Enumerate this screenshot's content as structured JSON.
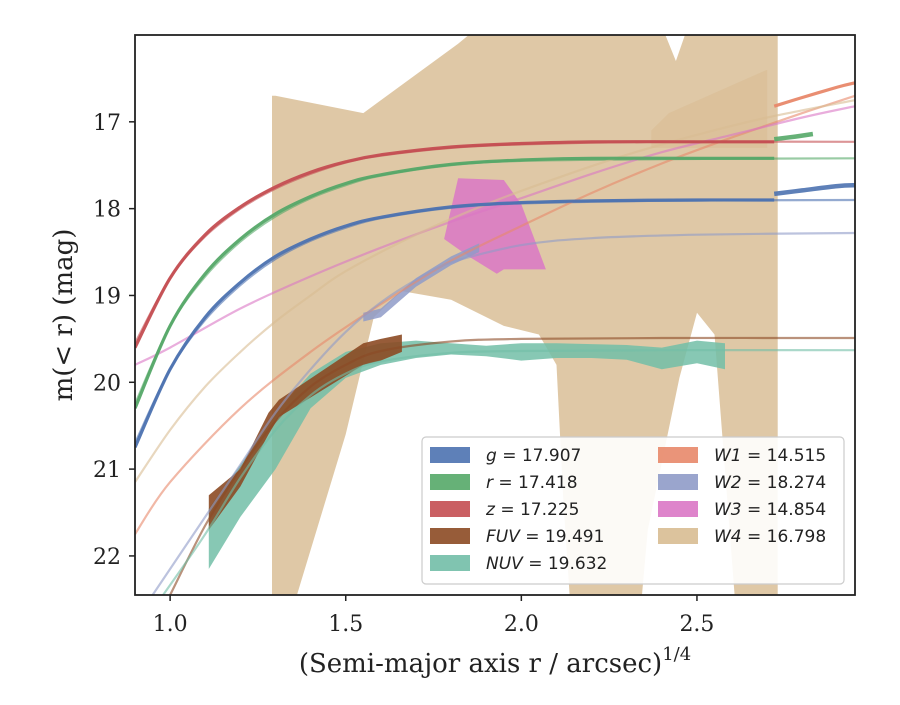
{
  "chart_data": {
    "type": "line",
    "xlabel": "(Semi-major axis r / arcsec)",
    "xlabel_exponent": "1/4",
    "ylabel": "m(< r) (mag)",
    "xlim": [
      0.9,
      2.95
    ],
    "ylim": [
      22.45,
      16.0
    ],
    "y_inverted": true,
    "grid": false,
    "legend_position": "lower-right",
    "x_ticks": [
      1.0,
      1.5,
      2.0,
      2.5
    ],
    "x_tick_labels": [
      "1.0",
      "1.5",
      "2.0",
      "2.5"
    ],
    "y_ticks": [
      17,
      18,
      19,
      20,
      21,
      22
    ],
    "y_tick_labels": [
      "17",
      "18",
      "19",
      "20",
      "21",
      "22"
    ],
    "legend": [
      {
        "band": "g",
        "text": "= 17.907",
        "color": "#4c72b0"
      },
      {
        "band": "r",
        "text": "= 17.418",
        "color": "#55a868"
      },
      {
        "band": "z",
        "text": "= 17.225",
        "color": "#c44e52"
      },
      {
        "band": "FUV",
        "text": "= 19.491",
        "color": "#8c4a24"
      },
      {
        "band": "NUV",
        "text": "= 19.632",
        "color": "#72bea7"
      },
      {
        "band": "W1",
        "text": "= 14.515",
        "color": "#e8886a"
      },
      {
        "band": "W2",
        "text": "= 18.274",
        "color": "#8f9bc8"
      },
      {
        "band": "W3",
        "text": "= 14.854",
        "color": "#da77c5"
      },
      {
        "band": "W4",
        "text": "= 16.798",
        "color": "#d8bc92"
      }
    ],
    "series": [
      {
        "band": "g",
        "color": "#4c72b0",
        "data_x": [
          0.9,
          1.0,
          1.1,
          1.2,
          1.3,
          1.4,
          1.5,
          1.6,
          1.8,
          2.0,
          2.2,
          2.5,
          2.72
        ],
        "data_y": [
          20.75,
          19.85,
          19.25,
          18.85,
          18.55,
          18.35,
          18.2,
          18.1,
          17.98,
          17.93,
          17.91,
          17.9,
          17.9
        ],
        "ext_x": [
          2.72,
          2.8,
          2.9,
          2.95
        ],
        "ext_y": [
          17.83,
          17.79,
          17.74,
          17.73
        ],
        "model_x": [
          0.9,
          1.0,
          1.1,
          1.2,
          1.3,
          1.4,
          1.5,
          1.6,
          1.8,
          2.0,
          2.4,
          2.95
        ],
        "model_y": [
          20.7,
          19.85,
          19.28,
          18.88,
          18.58,
          18.37,
          18.22,
          18.11,
          17.99,
          17.94,
          17.91,
          17.9
        ]
      },
      {
        "band": "r",
        "color": "#55a868",
        "data_x": [
          0.9,
          1.0,
          1.1,
          1.2,
          1.3,
          1.4,
          1.5,
          1.6,
          1.8,
          2.0,
          2.2,
          2.5,
          2.72
        ],
        "data_y": [
          20.3,
          19.35,
          18.75,
          18.35,
          18.06,
          17.86,
          17.71,
          17.61,
          17.49,
          17.44,
          17.42,
          17.42,
          17.42
        ],
        "ext_x": [
          2.72,
          2.78,
          2.83
        ],
        "ext_y": [
          17.2,
          17.17,
          17.14
        ],
        "model_x": [
          0.9,
          1.0,
          1.1,
          1.2,
          1.3,
          1.4,
          1.5,
          1.6,
          1.8,
          2.0,
          2.4,
          2.95
        ],
        "model_y": [
          20.25,
          19.35,
          18.78,
          18.38,
          18.09,
          17.88,
          17.73,
          17.62,
          17.5,
          17.45,
          17.43,
          17.42
        ]
      },
      {
        "band": "z",
        "color": "#c44e52",
        "data_x": [
          0.9,
          1.0,
          1.1,
          1.2,
          1.3,
          1.4,
          1.5,
          1.6,
          1.8,
          2.0,
          2.2,
          2.5,
          2.72
        ],
        "data_y": [
          19.6,
          18.8,
          18.3,
          17.98,
          17.75,
          17.58,
          17.46,
          17.38,
          17.29,
          17.25,
          17.23,
          17.23,
          17.23
        ],
        "ext_x": [],
        "ext_y": [],
        "model_x": [
          0.9,
          1.0,
          1.1,
          1.2,
          1.3,
          1.4,
          1.5,
          1.6,
          1.8,
          2.0,
          2.4,
          2.95
        ],
        "model_y": [
          19.55,
          18.8,
          18.32,
          18.0,
          17.77,
          17.6,
          17.47,
          17.39,
          17.3,
          17.26,
          17.23,
          17.23
        ]
      },
      {
        "band": "W1",
        "color": "#e8886a",
        "data_x": [
          2.72,
          2.8,
          2.9,
          2.95
        ],
        "data_y": [
          16.82,
          16.72,
          16.6,
          16.55
        ],
        "ext_x": [],
        "ext_y": [],
        "model_x": [
          0.9,
          1.0,
          1.2,
          1.4,
          1.6,
          1.8,
          2.0,
          2.2,
          2.4,
          2.6,
          2.8,
          2.95
        ],
        "model_y": [
          21.75,
          21.15,
          20.3,
          19.65,
          19.1,
          18.6,
          18.2,
          17.82,
          17.48,
          17.18,
          16.9,
          16.7
        ]
      },
      {
        "band": "W2",
        "color": "#8f9bc8",
        "data_x": [],
        "data_y": [],
        "ext_x": [],
        "ext_y": [],
        "model_x": [
          0.95,
          1.1,
          1.2,
          1.3,
          1.4,
          1.5,
          1.6,
          1.7,
          1.8,
          2.0,
          2.2,
          2.5,
          2.95
        ],
        "model_y": [
          22.45,
          21.55,
          20.95,
          20.35,
          19.85,
          19.42,
          19.08,
          18.82,
          18.62,
          18.42,
          18.34,
          18.3,
          18.28
        ]
      },
      {
        "band": "W3",
        "color": "#da77c5",
        "data_x": [],
        "data_y": [],
        "ext_x": [],
        "ext_y": [],
        "model_x": [
          0.9,
          1.0,
          1.2,
          1.4,
          1.6,
          1.8,
          2.0,
          2.2,
          2.4,
          2.6,
          2.8,
          2.95
        ],
        "model_y": [
          19.8,
          19.6,
          19.15,
          18.78,
          18.45,
          18.15,
          17.88,
          17.6,
          17.35,
          17.15,
          16.95,
          16.82
        ]
      },
      {
        "band": "W4",
        "color": "#d8bc92",
        "data_x": [],
        "data_y": [],
        "ext_x": [],
        "ext_y": [],
        "model_x": [
          0.9,
          1.0,
          1.1,
          1.2,
          1.3,
          1.4,
          1.5,
          1.7,
          1.9,
          2.1,
          2.3,
          2.5,
          2.7,
          2.95
        ],
        "model_y": [
          21.15,
          20.55,
          20.05,
          19.65,
          19.3,
          19.0,
          18.72,
          18.3,
          17.95,
          17.65,
          17.38,
          17.15,
          16.95,
          16.75
        ]
      },
      {
        "band": "FUV",
        "color": "#8c4a24",
        "data_x": [],
        "data_y": [],
        "ext_x": [],
        "ext_y": [],
        "model_x": [
          1.0,
          1.1,
          1.2,
          1.3,
          1.4,
          1.5,
          1.6,
          1.8,
          2.0,
          2.4,
          2.95
        ],
        "model_y": [
          22.45,
          21.65,
          21.0,
          20.45,
          20.05,
          19.8,
          19.64,
          19.53,
          19.5,
          19.49,
          19.49
        ]
      },
      {
        "band": "NUV",
        "color": "#72bea7",
        "data_x": [],
        "data_y": [],
        "ext_x": [],
        "ext_y": [],
        "model_x": [
          0.98,
          1.1,
          1.2,
          1.3,
          1.4,
          1.5,
          1.6,
          1.8,
          2.0,
          2.4,
          2.95
        ],
        "model_y": [
          22.45,
          21.75,
          21.1,
          20.55,
          20.15,
          19.9,
          19.76,
          19.66,
          19.64,
          19.63,
          19.63
        ]
      }
    ],
    "bands": [
      {
        "band": "W4",
        "color": "#d8bc92",
        "opacity": 0.82,
        "upper_x": [
          1.29,
          1.3,
          1.55,
          1.82,
          2.03,
          2.1,
          2.15,
          2.3,
          2.37,
          2.44,
          2.5,
          2.6,
          2.67,
          2.73
        ],
        "upper_y": [
          16.7,
          16.7,
          16.9,
          16.1,
          15.4,
          15.4,
          15.6,
          15.4,
          15.6,
          16.3,
          15.6,
          15.4,
          15.4,
          15.4
        ],
        "lower_x": [
          1.29,
          1.3,
          1.35,
          1.5,
          1.58,
          1.66,
          1.8,
          1.95,
          2.05,
          2.1,
          2.12,
          2.14,
          2.2,
          2.34,
          2.36,
          2.45,
          2.5,
          2.55,
          2.61,
          2.63,
          2.73
        ],
        "lower_y": [
          22.6,
          22.6,
          22.6,
          20.6,
          19.25,
          18.95,
          19.05,
          19.35,
          19.45,
          19.8,
          21.4,
          22.6,
          22.6,
          22.6,
          21.7,
          19.95,
          19.2,
          19.45,
          22.6,
          22.6,
          22.6
        ]
      },
      {
        "band": "W4",
        "color": "#d8bc92",
        "opacity": 0.55,
        "upper_x": [
          2.37,
          2.42,
          2.7
        ],
        "upper_y": [
          17.1,
          16.9,
          16.4
        ],
        "lower_x": [
          2.37,
          2.7
        ],
        "lower_y": [
          17.3,
          17.3
        ]
      },
      {
        "band": "W3",
        "color": "#da77c5",
        "opacity": 0.85,
        "upper_x": [
          1.78,
          1.82,
          1.95,
          2.0,
          2.07
        ],
        "upper_y": [
          18.35,
          17.65,
          17.67,
          17.95,
          18.7
        ],
        "lower_x": [
          1.78,
          1.85,
          1.93,
          1.95,
          2.07
        ],
        "lower_y": [
          18.35,
          18.55,
          18.75,
          18.7,
          18.7
        ]
      },
      {
        "band": "W2",
        "color": "#8f9bc8",
        "opacity": 0.85,
        "upper_x": [
          1.55,
          1.6,
          1.7,
          1.8,
          1.88
        ],
        "upper_y": [
          19.2,
          19.15,
          18.8,
          18.55,
          18.4
        ],
        "lower_x": [
          1.55,
          1.6,
          1.7,
          1.8,
          1.88
        ],
        "lower_y": [
          19.3,
          19.25,
          18.9,
          18.65,
          18.5
        ]
      },
      {
        "band": "NUV",
        "color": "#72bea7",
        "opacity": 0.85,
        "upper_x": [
          1.11,
          1.2,
          1.3,
          1.4,
          1.5,
          1.6,
          1.7,
          1.8,
          1.9,
          2.0,
          2.1,
          2.2,
          2.3,
          2.4,
          2.5,
          2.58
        ],
        "upper_y": [
          21.45,
          20.95,
          20.35,
          19.9,
          19.65,
          19.55,
          19.52,
          19.55,
          19.58,
          19.55,
          19.55,
          19.56,
          19.57,
          19.6,
          19.52,
          19.55
        ],
        "lower_x": [
          1.11,
          1.2,
          1.3,
          1.4,
          1.5,
          1.6,
          1.7,
          1.8,
          1.9,
          2.0,
          2.1,
          2.2,
          2.3,
          2.4,
          2.5,
          2.58
        ],
        "lower_y": [
          22.15,
          21.55,
          21.0,
          20.3,
          19.95,
          19.8,
          19.72,
          19.68,
          19.7,
          19.75,
          19.72,
          19.72,
          19.74,
          19.85,
          19.78,
          19.85
        ]
      },
      {
        "band": "FUV",
        "color": "#8c4a24",
        "opacity": 0.9,
        "upper_x": [
          1.11,
          1.2,
          1.28,
          1.31,
          1.55,
          1.6,
          1.66
        ],
        "upper_y": [
          21.3,
          21.0,
          20.35,
          20.2,
          19.55,
          19.5,
          19.45
        ],
        "lower_x": [
          1.11,
          1.2,
          1.28,
          1.31,
          1.55,
          1.6,
          1.66
        ],
        "lower_y": [
          21.7,
          21.2,
          20.6,
          20.4,
          19.8,
          19.75,
          19.65
        ]
      }
    ]
  }
}
